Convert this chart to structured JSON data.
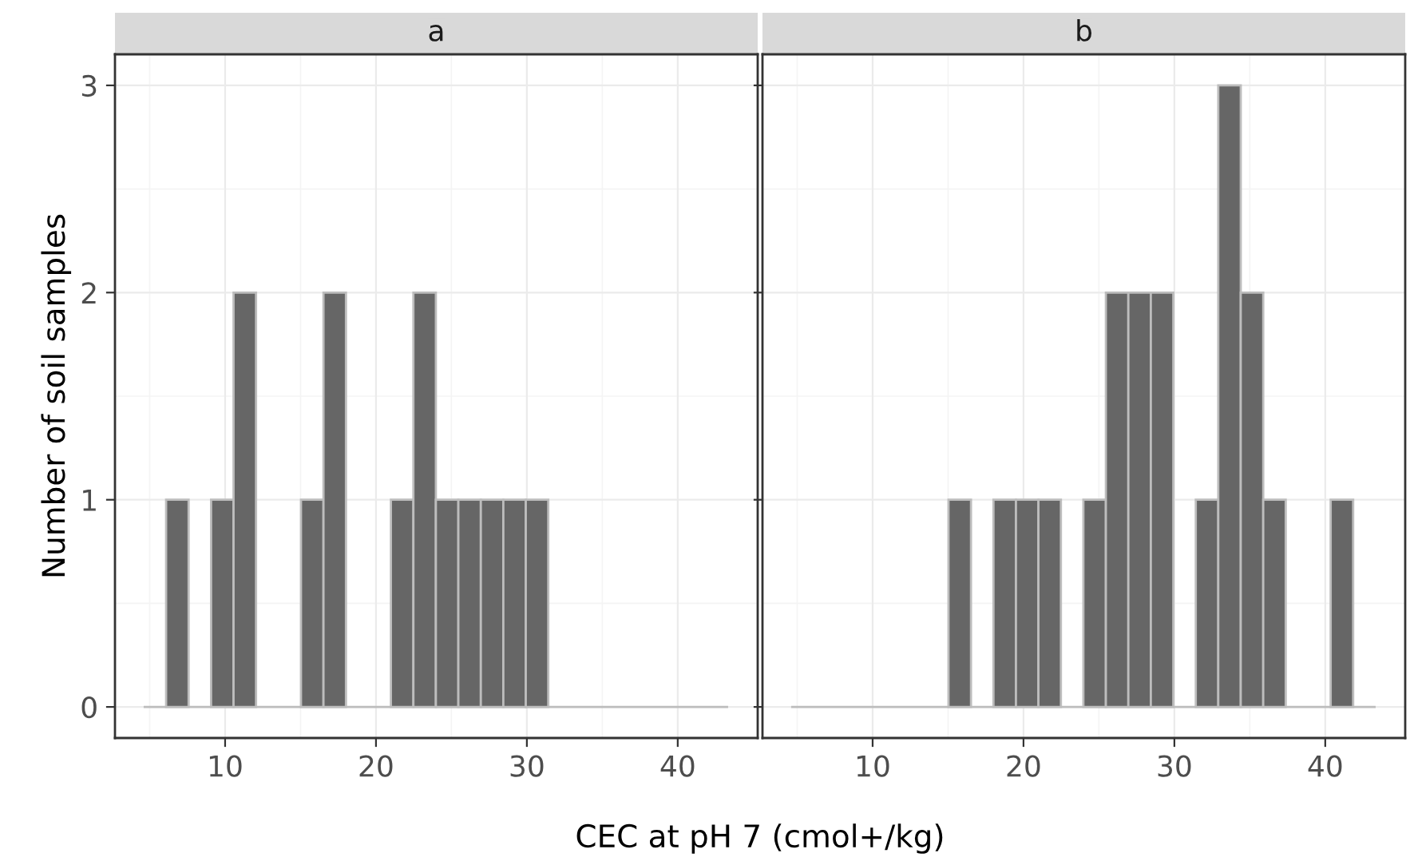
{
  "chart_data": [
    {
      "type": "histogram",
      "title": "a",
      "ylabel": "Number of soil samples",
      "xlabel": "CEC at pH 7 (cmol+/kg)",
      "bins": [
        4.6,
        6.09,
        7.58,
        9.07,
        10.56,
        12.05,
        13.54,
        15.03,
        16.52,
        18.01,
        19.5,
        20.99,
        22.48,
        23.97,
        25.46,
        26.95,
        28.44,
        29.93,
        31.42,
        32.91,
        34.4,
        35.89,
        37.38,
        38.87,
        40.36,
        41.85,
        43.34
      ],
      "values": [
        0,
        1,
        0,
        1,
        2,
        0,
        0,
        1,
        2,
        0,
        0,
        1,
        2,
        1,
        1,
        1,
        1,
        1,
        0,
        0,
        0,
        0,
        0,
        0,
        0,
        0
      ],
      "color": "#666666",
      "xlim": [
        2.7,
        45.3
      ],
      "ylim": [
        -0.15,
        3.15
      ],
      "xticks": [
        10,
        20,
        30,
        40
      ],
      "yticks": [
        0,
        1,
        2,
        3
      ],
      "grid": true
    },
    {
      "type": "histogram",
      "title": "b",
      "bins": [
        4.6,
        6.09,
        7.58,
        9.07,
        10.56,
        12.05,
        13.54,
        15.03,
        16.52,
        18.01,
        19.5,
        20.99,
        22.48,
        23.97,
        25.46,
        26.95,
        28.44,
        29.93,
        31.42,
        32.91,
        34.4,
        35.89,
        37.38,
        38.87,
        40.36,
        41.85,
        43.34
      ],
      "values": [
        0,
        0,
        0,
        0,
        0,
        0,
        0,
        1,
        0,
        1,
        1,
        1,
        0,
        1,
        2,
        2,
        2,
        0,
        1,
        3,
        2,
        1,
        0,
        0,
        1,
        0
      ],
      "color": "#666666",
      "xlim": [
        2.7,
        45.3
      ],
      "ylim": [
        -0.15,
        3.15
      ],
      "xticks": [
        10,
        20,
        30,
        40
      ],
      "yticks": [
        0,
        1,
        2,
        3
      ],
      "grid": true,
      "tick_labels": "x"
    }
  ]
}
